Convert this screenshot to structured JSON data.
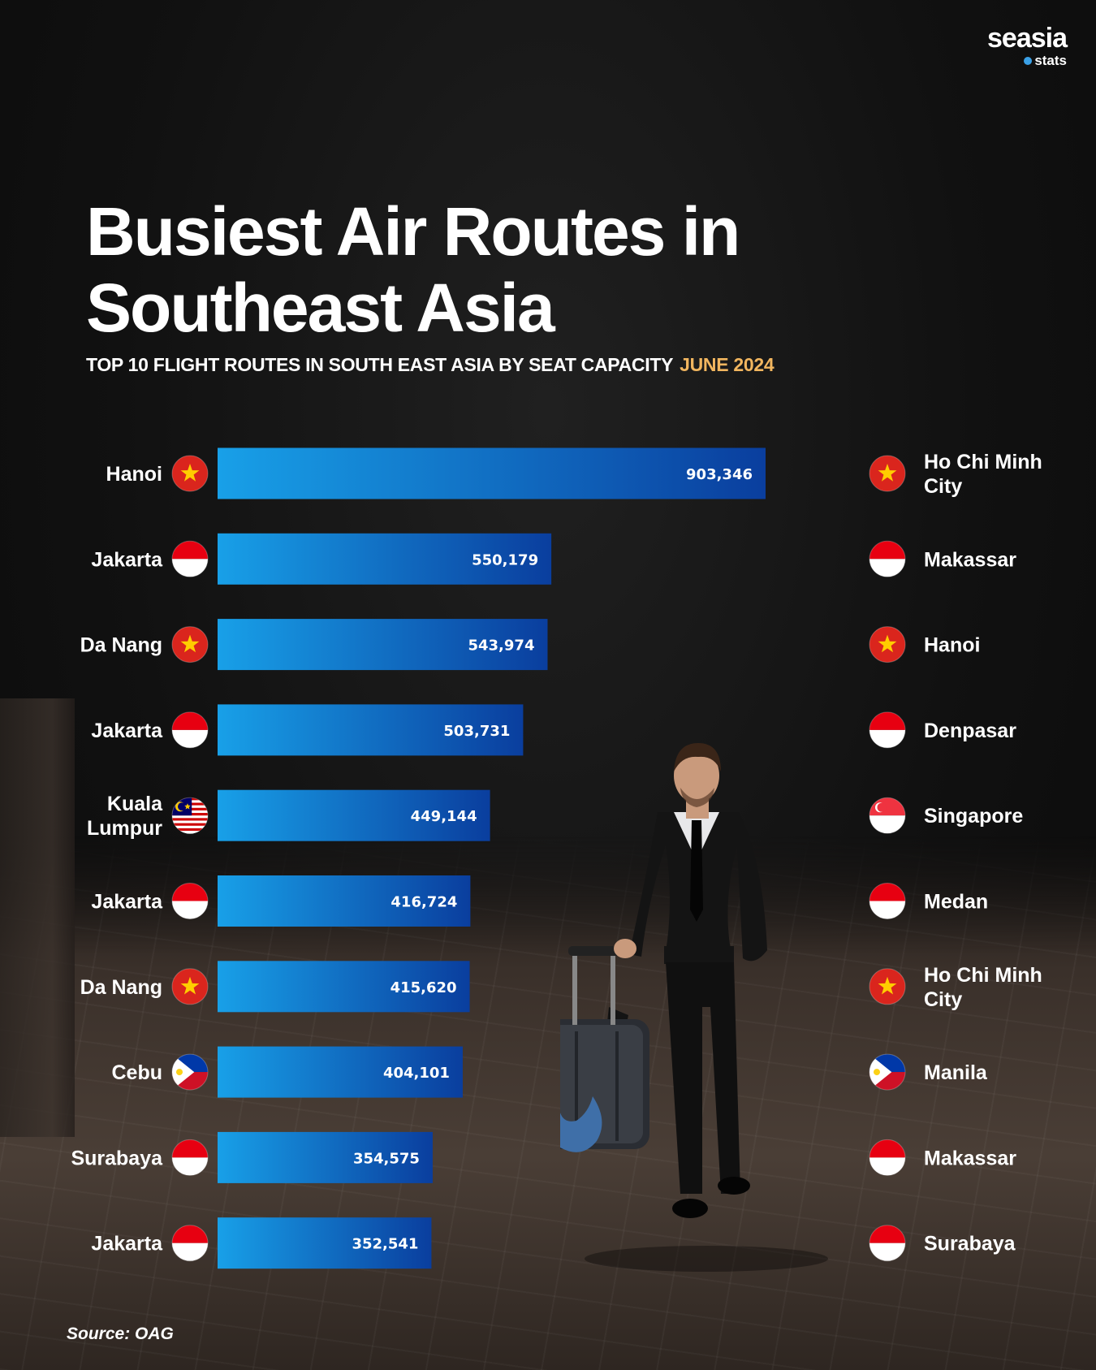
{
  "brand": {
    "name": "seasia",
    "sub": "stats"
  },
  "title": "Busiest Air Routes in Southeast Asia",
  "subtitle": "TOP 10 FLIGHT ROUTES IN SOUTH EAST ASIA BY SEAT CAPACITY",
  "date": "JUNE 2024",
  "source": "Source: OAG",
  "colors": {
    "bar_start": "#18a0e8",
    "bar_end": "#0a3e9e",
    "connector_start": "#ffd54a",
    "connector_end": "#f29a55",
    "date": "#f2b65f"
  },
  "chart_data": {
    "type": "bar",
    "orientation": "horizontal",
    "xlim": [
      0,
      903346
    ],
    "grid": false,
    "rows": [
      {
        "origin": "Hanoi",
        "origin_flag": "vietnam-flag-icon",
        "destination": "Ho Chi Minh City",
        "destination_flag": "vietnam-flag-icon",
        "value": 903346,
        "label": "903,346"
      },
      {
        "origin": "Jakarta",
        "origin_flag": "indonesia-flag-icon",
        "destination": "Makassar",
        "destination_flag": "indonesia-flag-icon",
        "value": 550179,
        "label": "550,179"
      },
      {
        "origin": "Da Nang",
        "origin_flag": "vietnam-flag-icon",
        "destination": "Hanoi",
        "destination_flag": "vietnam-flag-icon",
        "value": 543974,
        "label": "543,974"
      },
      {
        "origin": "Jakarta",
        "origin_flag": "indonesia-flag-icon",
        "destination": "Denpasar",
        "destination_flag": "indonesia-flag-icon",
        "value": 503731,
        "label": "503,731"
      },
      {
        "origin": "Kuala Lumpur",
        "origin_flag": "malaysia-flag-icon",
        "destination": "Singapore",
        "destination_flag": "singapore-flag-icon",
        "value": 449144,
        "label": "449,144"
      },
      {
        "origin": "Jakarta",
        "origin_flag": "indonesia-flag-icon",
        "destination": "Medan",
        "destination_flag": "indonesia-flag-icon",
        "value": 416724,
        "label": "416,724"
      },
      {
        "origin": "Da Nang",
        "origin_flag": "vietnam-flag-icon",
        "destination": "Ho Chi Minh City",
        "destination_flag": "vietnam-flag-icon",
        "value": 415620,
        "label": "415,620"
      },
      {
        "origin": "Cebu",
        "origin_flag": "philippines-flag-icon",
        "destination": "Manila",
        "destination_flag": "philippines-flag-icon",
        "value": 404101,
        "label": "404,101"
      },
      {
        "origin": "Surabaya",
        "origin_flag": "indonesia-flag-icon",
        "destination": "Makassar",
        "destination_flag": "indonesia-flag-icon",
        "value": 354575,
        "label": "354,575"
      },
      {
        "origin": "Jakarta",
        "origin_flag": "indonesia-flag-icon",
        "destination": "Surabaya",
        "destination_flag": "indonesia-flag-icon",
        "value": 352541,
        "label": "352,541"
      }
    ]
  }
}
